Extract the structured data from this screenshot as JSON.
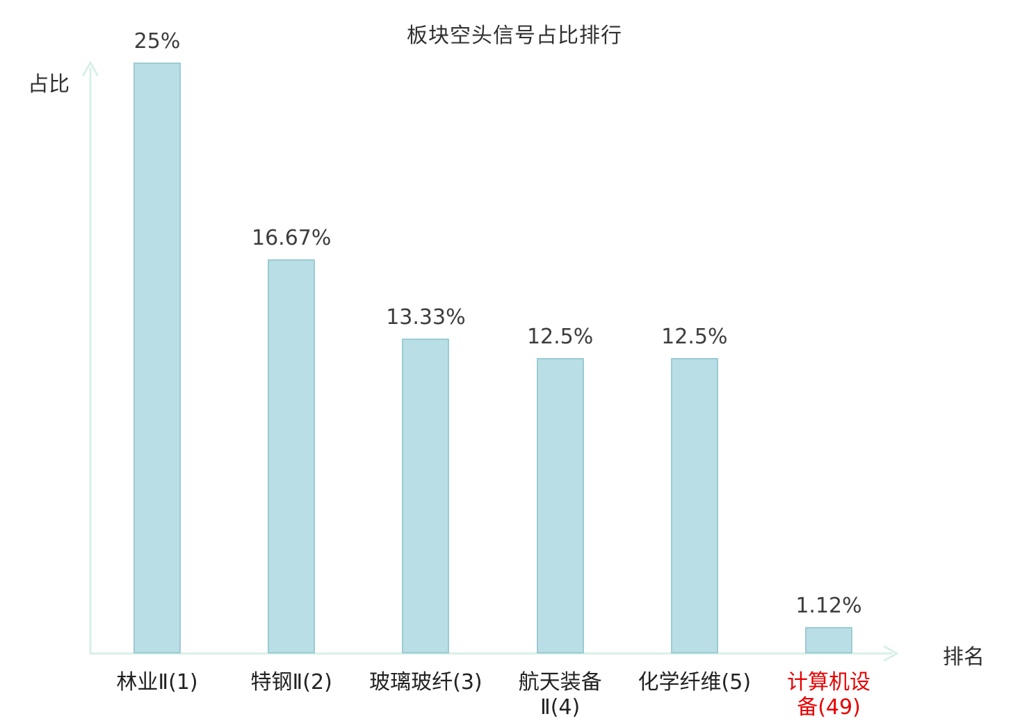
{
  "chart_data": {
    "type": "bar",
    "title": "板块空头信号占比排行",
    "ylabel": "占比",
    "xlabel": "排名",
    "categories": [
      "林业Ⅱ(1)",
      "特钢Ⅱ(2)",
      "玻璃玻纤(3)",
      "航天装备\nⅡ(4)",
      "化学纤维(5)",
      "计算机设\n备(49)"
    ],
    "values": [
      25,
      16.67,
      13.33,
      12.5,
      12.5,
      1.12
    ],
    "value_labels": [
      "25%",
      "16.67%",
      "13.33%",
      "12.5%",
      "12.5%",
      "1.12%"
    ],
    "ylim": [
      0,
      25
    ],
    "grid": false,
    "legend": null,
    "highlighted_category_index": 5,
    "colors": {
      "bar_fill": "#b9dee5",
      "bar_border": "#9bcbd4",
      "axis": "#d8f0e6",
      "value_text": "#3d3d3d",
      "highlight_text": "#e80000"
    }
  }
}
